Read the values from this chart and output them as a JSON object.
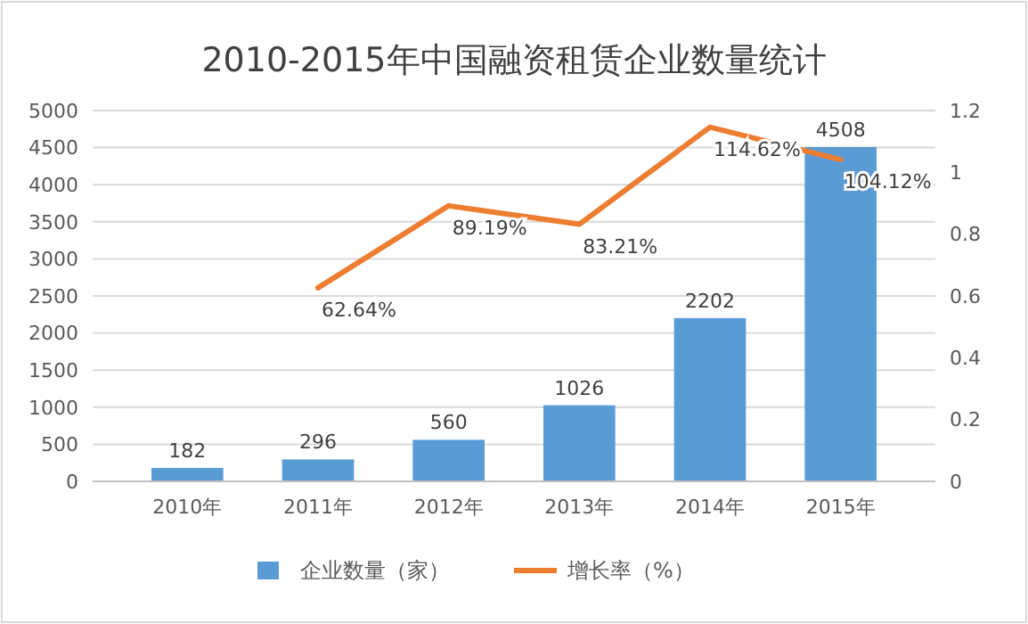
{
  "chart_data": {
    "type": "bar",
    "title": "2010-2015年中国融资租赁企业数量统计",
    "categories": [
      "2010年",
      "2011年",
      "2012年",
      "2013年",
      "2014年",
      "2015年"
    ],
    "series": [
      {
        "name": "企业数量（家）",
        "color": "#5b9bd5",
        "values": [
          182,
          296,
          560,
          1026,
          2202,
          4508
        ],
        "value_labels": [
          "182",
          "296",
          "560",
          "1026",
          "2202",
          "4508"
        ]
      },
      {
        "name": "增长率（%）",
        "type": "line",
        "axis": "y2",
        "color": "#ed7d31",
        "values": [
          null,
          0.6264,
          0.8919,
          0.8321,
          1.1462,
          1.0412
        ],
        "value_labels": [
          null,
          "62.64%",
          "89.19%",
          "83.21%",
          "114.62%",
          "104.12%"
        ]
      }
    ],
    "ylim": [
      0,
      5000
    ],
    "yticks": [
      0,
      500,
      1000,
      1500,
      2000,
      2500,
      3000,
      3500,
      4000,
      4500,
      5000
    ],
    "y2lim": [
      0,
      1.2
    ],
    "y2ticks": [
      0,
      0.2,
      0.4,
      0.6,
      0.8,
      1,
      1.2
    ],
    "grid": "y",
    "legend": "bottom",
    "marker": "none",
    "line_style": "solid"
  }
}
